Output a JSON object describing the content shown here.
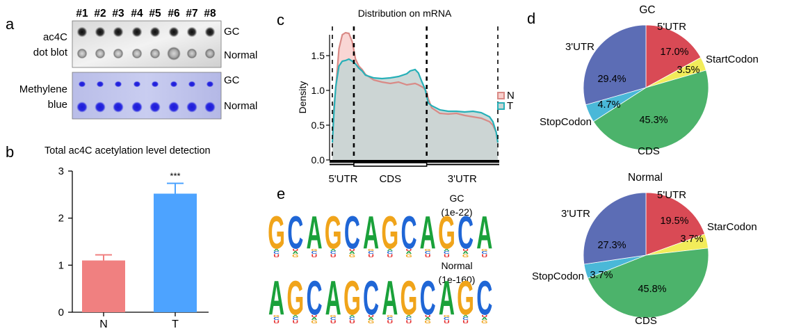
{
  "panel_labels": {
    "a": "a",
    "b": "b",
    "c": "c",
    "d": "d",
    "e": "e"
  },
  "colors": {
    "N": "#f08080",
    "T": "#4da3ff",
    "density_N_line": "#d98a86",
    "density_N_fill": "#f8cfcc",
    "density_T_line": "#27b0b8",
    "density_T_fill": "#c7d5d4",
    "pie_5utr": "#d94a55",
    "pie_startcodon": "#f2ec5a",
    "pie_cds": "#4cb36b",
    "pie_stopcodon": "#4ab8d8",
    "pie_3utr": "#5c6db5",
    "logo_A": "#1aa13a",
    "logo_C": "#1f66d6",
    "logo_G": "#f0a41a",
    "logo_U": "#e52f2f"
  },
  "dot_blot": {
    "sample_labels": [
      "#1",
      "#2",
      "#3",
      "#4",
      "#5",
      "#6",
      "#7",
      "#8"
    ],
    "top_method": [
      "ac4C",
      "dot blot"
    ],
    "bottom_method": [
      "Methylene",
      "blue"
    ],
    "row_labels": [
      "GC",
      "Normal"
    ]
  },
  "chart_data": [
    {
      "type": "bar",
      "panel": "b",
      "title": "Total ac4C acetylation level detection",
      "categories": [
        "N",
        "T"
      ],
      "values": [
        1.1,
        2.52
      ],
      "errors": [
        0.12,
        0.22
      ],
      "significance": [
        "",
        "***"
      ],
      "ylim": [
        0,
        3
      ],
      "yticks": [
        0,
        1,
        2,
        3
      ],
      "xlabel": "",
      "ylabel": ""
    },
    {
      "type": "area",
      "panel": "c",
      "title": "Distribution on mRNA",
      "ylabel": "Density",
      "xlim": [
        0,
        100
      ],
      "ylim": [
        0,
        1.9
      ],
      "yticks": [
        0.0,
        0.5,
        1.0,
        1.5
      ],
      "yticklabels": [
        "0.0",
        "0.5",
        "1.0",
        "1.5"
      ],
      "region_labels": [
        "5'UTR",
        "CDS",
        "3'UTR"
      ],
      "region_boundaries": [
        0,
        13,
        57,
        100
      ],
      "legend": [
        "N",
        "T"
      ],
      "series": [
        {
          "name": "N",
          "x": [
            0,
            1,
            2,
            4,
            6,
            8,
            10,
            12,
            14,
            16,
            18,
            20,
            25,
            30,
            35,
            40,
            45,
            50,
            52,
            55,
            57,
            58,
            60,
            65,
            70,
            75,
            80,
            85,
            90,
            95,
            97,
            99,
            100
          ],
          "y": [
            0.3,
            0.78,
            1.02,
            1.6,
            1.8,
            1.83,
            1.82,
            1.7,
            1.45,
            1.35,
            1.3,
            1.23,
            1.15,
            1.12,
            1.1,
            1.12,
            1.08,
            1.1,
            1.08,
            1.04,
            0.98,
            0.88,
            0.75,
            0.67,
            0.66,
            0.67,
            0.64,
            0.62,
            0.6,
            0.55,
            0.5,
            0.4,
            0.25
          ]
        },
        {
          "name": "T",
          "x": [
            0,
            1,
            2,
            4,
            6,
            8,
            10,
            12,
            14,
            16,
            18,
            20,
            25,
            30,
            35,
            40,
            45,
            47,
            50,
            52,
            54,
            56,
            57,
            58,
            60,
            65,
            70,
            75,
            80,
            85,
            90,
            95,
            97,
            99,
            100
          ],
          "y": [
            0.25,
            0.7,
            1.05,
            1.35,
            1.42,
            1.43,
            1.45,
            1.42,
            1.38,
            1.32,
            1.28,
            1.22,
            1.18,
            1.17,
            1.18,
            1.2,
            1.24,
            1.28,
            1.3,
            1.25,
            1.13,
            1.02,
            0.92,
            0.82,
            0.78,
            0.72,
            0.7,
            0.7,
            0.69,
            0.7,
            0.68,
            0.62,
            0.55,
            0.4,
            0.25
          ]
        }
      ]
    },
    {
      "type": "pie",
      "panel": "d",
      "title": "GC",
      "labels": [
        "5'UTR",
        "StartCodon",
        "CDS",
        "StopCodon",
        "3'UTR"
      ],
      "values": [
        17.0,
        3.5,
        45.3,
        4.7,
        29.4
      ],
      "value_labels": [
        "17.0%",
        "3.5%",
        "45.3%",
        "4.7%",
        "29.4%"
      ]
    },
    {
      "type": "pie",
      "panel": "d",
      "title": "Normal",
      "labels": [
        "5'UTR",
        "StarCodon",
        "CDS",
        "StopCodon",
        "3'UTR"
      ],
      "values": [
        19.5,
        3.7,
        45.8,
        3.7,
        27.3
      ],
      "value_labels": [
        "19.5%",
        "3.7%",
        "45.8%",
        "3.7%",
        "27.3%"
      ]
    }
  ],
  "motifs": [
    {
      "title": "GC",
      "pvalue": "(1e-22)",
      "sequence": "GCAGCAGCAGCA"
    },
    {
      "title": "Normal",
      "pvalue": "(1e-160)",
      "sequence": "AGCAGCAGCAGC"
    }
  ]
}
